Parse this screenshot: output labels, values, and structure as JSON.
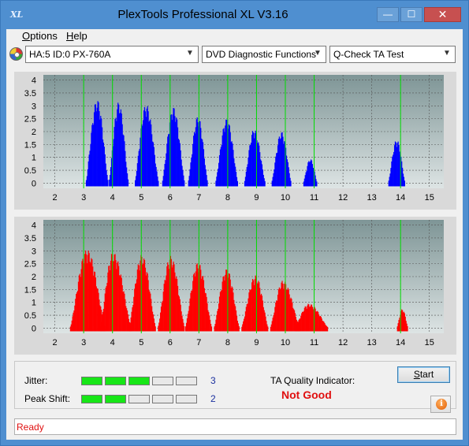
{
  "window": {
    "title": "PlexTools Professional XL V3.16",
    "app_icon_text": "XL",
    "minimize_glyph": "—",
    "maximize_glyph": "☐",
    "close_glyph": "✕"
  },
  "menu": {
    "options": {
      "accel": "O",
      "rest": "ptions"
    },
    "help": {
      "accel": "H",
      "rest": "elp"
    }
  },
  "toolbar": {
    "drive_icon": "disc-drive-icon",
    "drive": "HA:5 ID:0  PX-760A",
    "function": "DVD Diagnostic Functions",
    "test": "Q-Check TA Test",
    "dropdown_glyph": "▼"
  },
  "colors": {
    "plot_top": "#7e9596",
    "plot_bottom": "#dde4e4",
    "upper_series": "#0000ff",
    "lower_series": "#ff0000",
    "marker_line": "#00dd00",
    "meter_on": "#17e617",
    "quality_bad": "#e01010"
  },
  "chart_data": [
    {
      "type": "area",
      "name": "upper-chart",
      "x_ticks": [
        "2",
        "3",
        "4",
        "5",
        "6",
        "7",
        "8",
        "9",
        "10",
        "11",
        "12",
        "13",
        "14",
        "15"
      ],
      "y_ticks": [
        "0",
        "0.5",
        "1",
        "1.5",
        "2",
        "2.5",
        "3",
        "3.5",
        "4"
      ],
      "xlim": [
        1.6,
        15.5
      ],
      "ylim": [
        -0.2,
        4.2
      ],
      "markers": [
        3,
        4,
        5,
        6,
        7,
        8,
        9,
        10,
        11,
        14
      ],
      "peaks": [
        {
          "center": 3.45,
          "height": 3.25,
          "left": 3.05,
          "right": 3.85
        },
        {
          "center": 4.2,
          "height": 3.15,
          "left": 3.85,
          "right": 4.55
        },
        {
          "center": 5.15,
          "height": 3.05,
          "left": 4.75,
          "right": 5.6
        },
        {
          "center": 6.1,
          "height": 2.95,
          "left": 5.7,
          "right": 6.5
        },
        {
          "center": 6.95,
          "height": 2.6,
          "left": 6.6,
          "right": 7.3
        },
        {
          "center": 7.95,
          "height": 2.5,
          "left": 7.55,
          "right": 8.35
        },
        {
          "center": 8.9,
          "height": 2.1,
          "left": 8.55,
          "right": 9.3
        },
        {
          "center": 9.85,
          "height": 2.0,
          "left": 9.5,
          "right": 10.2
        },
        {
          "center": 10.85,
          "height": 0.95,
          "left": 10.6,
          "right": 11.1
        },
        {
          "center": 13.85,
          "height": 1.7,
          "left": 13.55,
          "right": 14.15
        }
      ]
    },
    {
      "type": "area",
      "name": "lower-chart",
      "x_ticks": [
        "2",
        "3",
        "4",
        "5",
        "6",
        "7",
        "8",
        "9",
        "10",
        "11",
        "12",
        "13",
        "14",
        "15"
      ],
      "y_ticks": [
        "0",
        "0.5",
        "1",
        "1.5",
        "2",
        "2.5",
        "3",
        "3.5",
        "4"
      ],
      "xlim": [
        1.6,
        15.5
      ],
      "ylim": [
        -0.2,
        4.2
      ],
      "markers": [
        3,
        4,
        5,
        6,
        7,
        8,
        9,
        10,
        11,
        14
      ],
      "peaks": [
        {
          "center": 3.1,
          "height": 3.05,
          "left": 2.5,
          "right": 3.75
        },
        {
          "center": 4.0,
          "height": 2.95,
          "left": 3.55,
          "right": 4.65
        },
        {
          "center": 5.0,
          "height": 2.85,
          "left": 4.55,
          "right": 5.5
        },
        {
          "center": 6.0,
          "height": 2.8,
          "left": 5.55,
          "right": 6.5
        },
        {
          "center": 6.95,
          "height": 2.55,
          "left": 6.5,
          "right": 7.45
        },
        {
          "center": 7.95,
          "height": 2.3,
          "left": 7.5,
          "right": 8.4
        },
        {
          "center": 8.95,
          "height": 2.05,
          "left": 8.45,
          "right": 9.4
        },
        {
          "center": 9.9,
          "height": 1.85,
          "left": 9.45,
          "right": 10.5
        },
        {
          "center": 10.8,
          "height": 0.95,
          "left": 10.3,
          "right": 11.5
        },
        {
          "center": 14.05,
          "height": 0.75,
          "left": 13.85,
          "right": 14.25
        }
      ]
    }
  ],
  "status": {
    "jitter_label": "Jitter:",
    "jitter_value": "3",
    "jitter_level": 3,
    "peak_shift_label": "Peak Shift:",
    "peak_shift_value": "2",
    "peak_shift_level": 2,
    "segments_total": 5,
    "quality_label": "TA Quality Indicator:",
    "quality_value": "Not Good",
    "start_accel": "S",
    "start_rest": "tart",
    "info_icon": "info-icon",
    "info_glyph": "i"
  },
  "statusbar": {
    "text": "Ready"
  }
}
